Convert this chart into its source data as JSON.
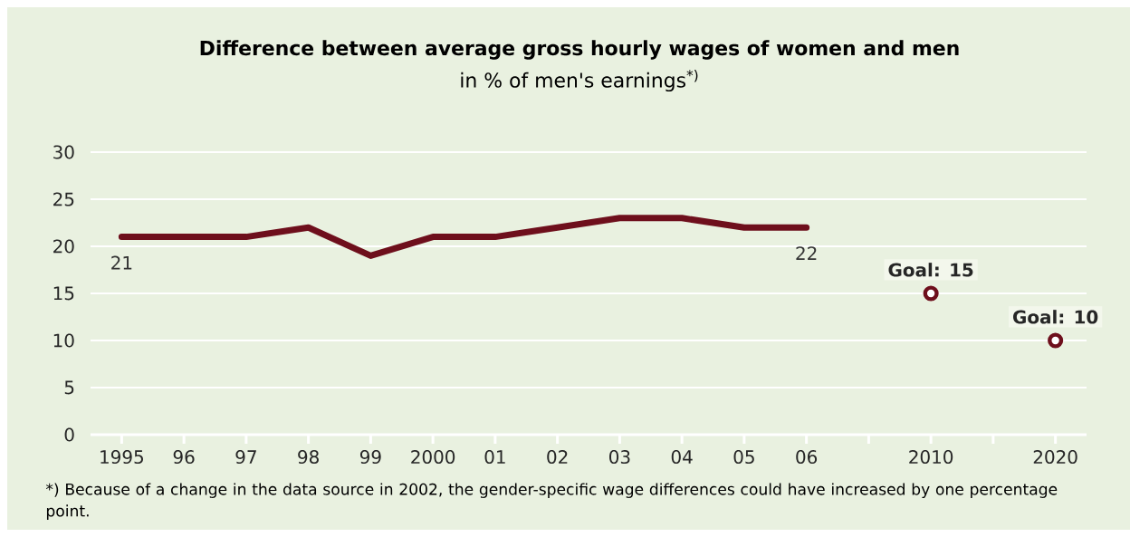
{
  "chart_data": {
    "type": "line",
    "title": "Difference between average gross hourly wages of women and men",
    "subtitle": "in % of men's earnings$^{*)}$",
    "categories": [
      "1995",
      "96",
      "97",
      "98",
      "99",
      "2000",
      "01",
      "02",
      "03",
      "04",
      "05",
      "06",
      null,
      "2010",
      null,
      "2020"
    ],
    "series": [
      {
        "color": "#6e0f1c",
        "marker": "none",
        "values": [
          21,
          21,
          21,
          22,
          19,
          21,
          21,
          22,
          23,
          23,
          22,
          22,
          null,
          null,
          null,
          null
        ],
        "value_labels": [
          "21",
          null,
          null,
          null,
          null,
          null,
          null,
          null,
          null,
          null,
          null,
          "22",
          null,
          null,
          null,
          null
        ]
      },
      {
        "type": "scatter",
        "color": "#6e0f1c",
        "marker": "circle",
        "values": [
          null,
          null,
          null,
          null,
          null,
          null,
          null,
          null,
          null,
          null,
          null,
          null,
          null,
          15,
          null,
          10
        ],
        "value_labels": [
          null,
          null,
          null,
          null,
          null,
          null,
          null,
          null,
          null,
          null,
          null,
          null,
          null,
          "Goal: 15",
          null,
          "Goal: 10"
        ]
      }
    ],
    "ylim": [
      0,
      30
    ],
    "yticks": [
      0,
      5,
      10,
      15,
      20,
      25,
      30
    ],
    "grid": "y",
    "annotations": [
      "*) Because of a change in the data source in 2002, the gender-specific wage differences could have increased by one percentage point."
    ]
  }
}
